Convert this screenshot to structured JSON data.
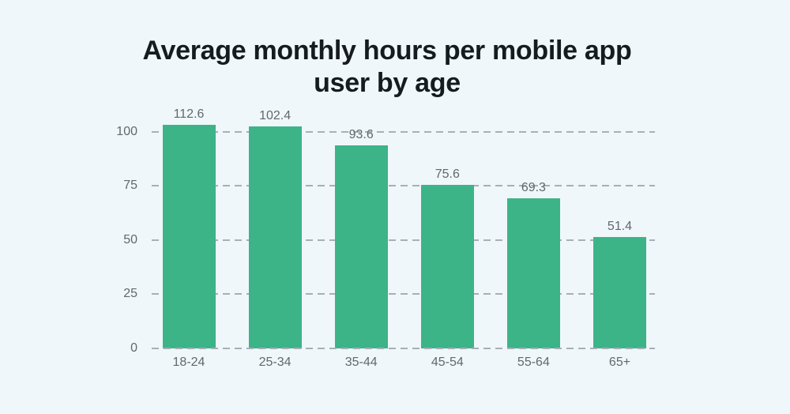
{
  "chart_data": {
    "type": "bar",
    "title": "Average monthly hours per mobile app user by age",
    "title_lines": [
      "Average monthly hours per mobile app",
      "user by age"
    ],
    "categories": [
      "18-24",
      "25-34",
      "35-44",
      "45-54",
      "55-64",
      "65+"
    ],
    "values": [
      112.6,
      102.4,
      93.6,
      75.6,
      69.3,
      51.4
    ],
    "value_label_decimals": 1,
    "yticks": [
      0,
      25,
      50,
      75,
      100
    ],
    "ylim": [
      0,
      103
    ],
    "grid": "horizontal-dashed",
    "legend": "none",
    "xlabel": "",
    "ylabel": "",
    "colors": {
      "bar": "#3CB487",
      "background": "#EFF7FA",
      "gridline": "#A9AFB6",
      "axis_label": "#62686E",
      "value_label": "#62686E",
      "title": "#161B20"
    }
  }
}
